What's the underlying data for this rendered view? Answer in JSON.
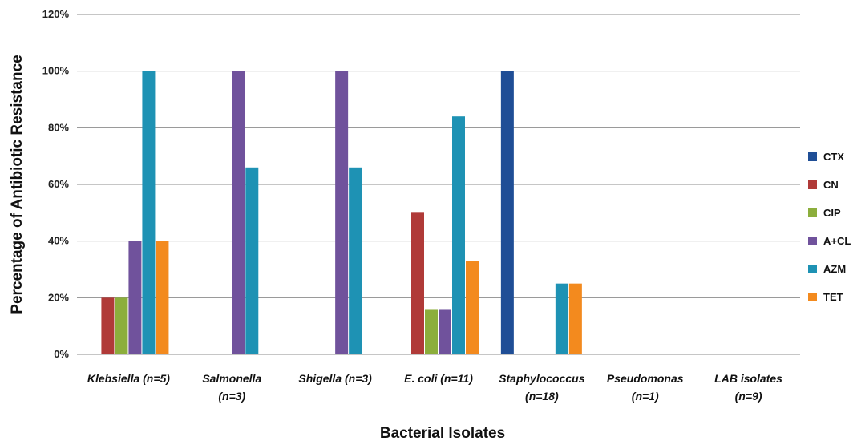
{
  "chart_data": {
    "type": "bar",
    "title": "",
    "xlabel": "Bacterial Isolates",
    "ylabel": "Percentage of Antibiotic Resistance",
    "ylim": [
      0,
      120
    ],
    "yticks": [
      "0%",
      "20%",
      "40%",
      "60%",
      "80%",
      "100%",
      "120%"
    ],
    "grid": true,
    "legend_position": "right",
    "categories": [
      [
        "Klebsiella (n=5)"
      ],
      [
        "Salmonella",
        "(n=3)"
      ],
      [
        "Shigella (n=3)"
      ],
      [
        "E. coli (n=11)"
      ],
      [
        "Staphylococcus",
        "(n=18)"
      ],
      [
        "Pseudomonas",
        "(n=1)"
      ],
      [
        "LAB isolates",
        "(n=9)"
      ]
    ],
    "series": [
      {
        "name": "CTX",
        "color": "#1F4E96",
        "values": [
          0,
          0,
          0,
          0,
          100,
          0,
          0
        ]
      },
      {
        "name": "CN",
        "color": "#B03A38",
        "values": [
          20,
          0,
          0,
          50,
          0,
          0,
          0
        ]
      },
      {
        "name": "CIP",
        "color": "#8CAE3C",
        "values": [
          20,
          0,
          0,
          16,
          0,
          0,
          0
        ]
      },
      {
        "name": "A+CL",
        "color": "#70529C",
        "values": [
          40,
          100,
          100,
          16,
          0,
          0,
          0
        ]
      },
      {
        "name": "AZM",
        "color": "#1E92B4",
        "values": [
          100,
          66,
          66,
          84,
          25,
          0,
          0
        ]
      },
      {
        "name": "TET",
        "color": "#F38A1E",
        "values": [
          40,
          0,
          0,
          33,
          25,
          0,
          0
        ]
      }
    ]
  }
}
